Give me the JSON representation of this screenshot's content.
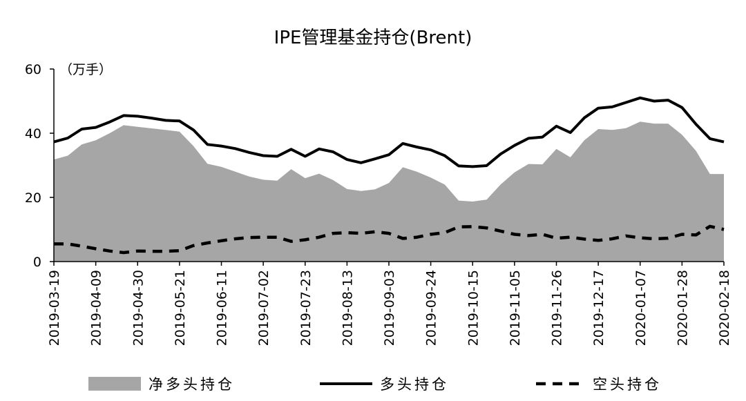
{
  "chart_data": {
    "type": "area",
    "title": "IPE管理基金持仓(Brent)",
    "unit_label": "（万手）",
    "ylim": [
      0,
      60
    ],
    "yticks": [
      0,
      20,
      40,
      60
    ],
    "xtick_labels": [
      "2019-03-19",
      "2019-04-09",
      "2019-04-30",
      "2019-05-21",
      "2019-06-11",
      "2019-07-02",
      "2019-07-23",
      "2019-08-13",
      "2019-09-03",
      "2019-09-24",
      "2019-10-15",
      "2019-11-05",
      "2019-11-26",
      "2019-12-17",
      "2020-01-07",
      "2020-01-28",
      "2020-02-18"
    ],
    "x": [
      "2019-03-19",
      "2019-03-26",
      "2019-04-02",
      "2019-04-09",
      "2019-04-16",
      "2019-04-23",
      "2019-04-30",
      "2019-05-07",
      "2019-05-14",
      "2019-05-21",
      "2019-05-28",
      "2019-06-04",
      "2019-06-11",
      "2019-06-18",
      "2019-06-25",
      "2019-07-02",
      "2019-07-09",
      "2019-07-16",
      "2019-07-23",
      "2019-07-30",
      "2019-08-06",
      "2019-08-13",
      "2019-08-20",
      "2019-08-27",
      "2019-09-03",
      "2019-09-10",
      "2019-09-17",
      "2019-09-24",
      "2019-10-01",
      "2019-10-08",
      "2019-10-15",
      "2019-10-22",
      "2019-10-29",
      "2019-11-05",
      "2019-11-12",
      "2019-11-19",
      "2019-11-26",
      "2019-12-03",
      "2019-12-10",
      "2019-12-17",
      "2019-12-24",
      "2019-12-31",
      "2020-01-07",
      "2020-01-14",
      "2020-01-21",
      "2020-01-28",
      "2020-02-04",
      "2020-02-11",
      "2020-02-18"
    ],
    "series": [
      {
        "name": "净多头持仓",
        "type": "area",
        "color": "#a6a6a6",
        "values": [
          31.8,
          33.0,
          36.5,
          37.8,
          40.0,
          42.5,
          42.0,
          41.5,
          41.0,
          40.5,
          36.0,
          30.5,
          29.5,
          28.0,
          26.5,
          25.5,
          25.2,
          28.8,
          26.0,
          27.4,
          25.4,
          22.6,
          22.0,
          22.5,
          24.5,
          29.4,
          28.0,
          26.2,
          24.0,
          19.0,
          18.7,
          19.3,
          24.0,
          27.8,
          30.4,
          30.3,
          35.1,
          32.5,
          37.8,
          41.3,
          41.0,
          41.6,
          43.6,
          43.0,
          43.0,
          39.5,
          34.5,
          27.3,
          27.3
        ]
      },
      {
        "name": "多头持仓",
        "type": "line",
        "color": "#000000",
        "values": [
          37.3,
          38.5,
          41.3,
          41.8,
          43.5,
          45.5,
          45.3,
          44.7,
          44.0,
          43.8,
          41.0,
          36.5,
          36.0,
          35.2,
          34.0,
          33.0,
          32.8,
          35.0,
          32.8,
          35.1,
          34.2,
          31.8,
          30.8,
          32.0,
          33.3,
          36.8,
          35.7,
          34.8,
          33.0,
          29.8,
          29.6,
          29.9,
          33.5,
          36.2,
          38.4,
          38.8,
          42.2,
          40.2,
          44.8,
          47.8,
          48.2,
          49.6,
          51.0,
          50.0,
          50.3,
          48.0,
          42.8,
          38.3,
          37.3
        ]
      },
      {
        "name": "空头持仓",
        "type": "line",
        "dash": true,
        "color": "#000000",
        "values": [
          5.5,
          5.5,
          4.8,
          4.0,
          3.3,
          2.8,
          3.3,
          3.2,
          3.2,
          3.4,
          5.0,
          5.8,
          6.5,
          7.1,
          7.5,
          7.6,
          7.6,
          6.3,
          6.8,
          7.6,
          8.8,
          9.0,
          8.8,
          9.3,
          8.8,
          7.2,
          7.6,
          8.5,
          9.0,
          10.8,
          10.9,
          10.5,
          9.5,
          8.5,
          8.1,
          8.5,
          7.3,
          7.6,
          7.0,
          6.6,
          7.1,
          8.0,
          7.4,
          7.1,
          7.3,
          8.5,
          8.3,
          11.0,
          10.0
        ]
      }
    ],
    "legend_position": "bottom",
    "grid": false
  }
}
